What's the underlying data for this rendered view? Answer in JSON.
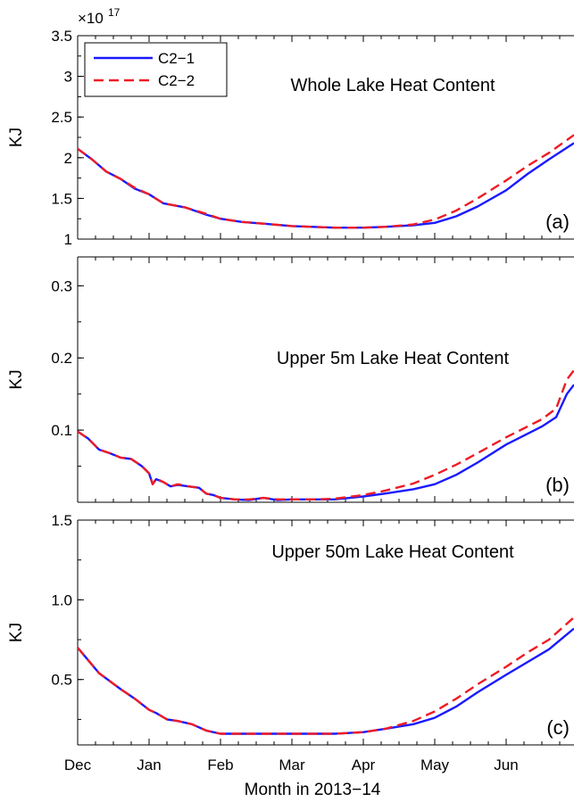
{
  "chart_data": {
    "type": "line",
    "xlabel": "Month in 2013−14",
    "months": [
      "Dec",
      "Jan",
      "Feb",
      "Mar",
      "Apr",
      "May",
      "Jun"
    ],
    "xlim": [
      0,
      6.95
    ],
    "legend": {
      "position": "top-left",
      "entries": [
        "C2−1",
        "C2−2"
      ]
    },
    "colors": {
      "C2-1": "#1a1aff",
      "C2-2": "#ee1c25"
    },
    "panels": [
      {
        "id": "a",
        "tag": "(a)",
        "title": "Whole Lake Heat Content",
        "ylabel": "KJ",
        "exponent_base": "×10",
        "exponent_power": "17",
        "ylim": [
          1,
          3.5
        ],
        "yticks": [
          1,
          1.5,
          2,
          2.5,
          3,
          3.5
        ],
        "ytick_labels": [
          "1",
          "1.5",
          "2",
          "2.5",
          "3",
          "3.5"
        ],
        "show_legend": true,
        "series": [
          {
            "name": "C2−1",
            "style": "solid",
            "x": [
              0,
              0.2,
              0.4,
              0.6,
              0.8,
              1.0,
              1.2,
              1.5,
              1.8,
              2.0,
              2.3,
              2.6,
              3.0,
              3.3,
              3.6,
              4.0,
              4.3,
              4.7,
              5.0,
              5.3,
              5.6,
              6.0,
              6.3,
              6.6,
              6.95
            ],
            "y": [
              2.11,
              1.98,
              1.83,
              1.74,
              1.62,
              1.55,
              1.44,
              1.39,
              1.3,
              1.25,
              1.21,
              1.19,
              1.16,
              1.15,
              1.14,
              1.14,
              1.15,
              1.17,
              1.2,
              1.28,
              1.4,
              1.6,
              1.8,
              1.98,
              2.18
            ]
          },
          {
            "name": "C2−2",
            "style": "dashed",
            "x": [
              0,
              0.2,
              0.4,
              0.6,
              0.8,
              1.0,
              1.2,
              1.5,
              1.8,
              2.0,
              2.3,
              2.6,
              3.0,
              3.3,
              3.6,
              4.0,
              4.3,
              4.7,
              5.0,
              5.3,
              5.6,
              6.0,
              6.3,
              6.6,
              6.95
            ],
            "y": [
              2.11,
              1.98,
              1.83,
              1.74,
              1.63,
              1.55,
              1.44,
              1.39,
              1.31,
              1.25,
              1.21,
              1.19,
              1.16,
              1.15,
              1.14,
              1.14,
              1.15,
              1.18,
              1.24,
              1.35,
              1.5,
              1.72,
              1.9,
              2.06,
              2.28
            ]
          }
        ]
      },
      {
        "id": "b",
        "tag": "(b)",
        "title": "Upper 5m Lake Heat Content",
        "ylabel": "KJ",
        "ylim": [
          0,
          0.34
        ],
        "yticks": [
          0.1,
          0.2,
          0.3
        ],
        "ytick_labels": [
          "0.1",
          "0.2",
          "0.3"
        ],
        "show_legend": false,
        "series": [
          {
            "name": "C2−1",
            "style": "solid",
            "x": [
              0,
              0.15,
              0.3,
              0.45,
              0.6,
              0.75,
              0.9,
              1.0,
              1.05,
              1.1,
              1.2,
              1.3,
              1.4,
              1.55,
              1.7,
              1.8,
              1.9,
              2.0,
              2.2,
              2.4,
              2.6,
              2.8,
              3.0,
              3.3,
              3.6,
              4.0,
              4.3,
              4.7,
              5.0,
              5.3,
              5.6,
              6.0,
              6.3,
              6.5,
              6.7,
              6.85,
              6.95
            ],
            "y": [
              0.098,
              0.088,
              0.073,
              0.068,
              0.062,
              0.06,
              0.05,
              0.04,
              0.025,
              0.032,
              0.028,
              0.022,
              0.024,
              0.022,
              0.02,
              0.012,
              0.01,
              0.006,
              0.004,
              0.003,
              0.006,
              0.003,
              0.004,
              0.004,
              0.004,
              0.008,
              0.012,
              0.018,
              0.025,
              0.038,
              0.055,
              0.08,
              0.095,
              0.105,
              0.118,
              0.15,
              0.163
            ]
          },
          {
            "name": "C2−2",
            "style": "dashed",
            "x": [
              0,
              0.15,
              0.3,
              0.45,
              0.6,
              0.75,
              0.9,
              1.0,
              1.05,
              1.1,
              1.2,
              1.3,
              1.4,
              1.55,
              1.7,
              1.8,
              1.9,
              2.0,
              2.2,
              2.4,
              2.6,
              2.8,
              3.0,
              3.3,
              3.6,
              4.0,
              4.3,
              4.7,
              5.0,
              5.3,
              5.6,
              6.0,
              6.3,
              6.5,
              6.7,
              6.85,
              6.95
            ],
            "y": [
              0.098,
              0.088,
              0.073,
              0.068,
              0.062,
              0.06,
              0.05,
              0.04,
              0.025,
              0.033,
              0.028,
              0.022,
              0.025,
              0.022,
              0.02,
              0.012,
              0.01,
              0.006,
              0.004,
              0.004,
              0.006,
              0.004,
              0.004,
              0.004,
              0.005,
              0.01,
              0.016,
              0.026,
              0.038,
              0.052,
              0.068,
              0.09,
              0.105,
              0.115,
              0.13,
              0.17,
              0.183
            ]
          }
        ]
      },
      {
        "id": "c",
        "tag": "(c)",
        "title": "Upper 50m Lake Heat Content",
        "ylabel": "KJ",
        "ylim": [
          0.09,
          1.5
        ],
        "yticks": [
          0.5,
          1.0,
          1.5
        ],
        "ytick_labels": [
          "0.5",
          "1.0",
          "1.5"
        ],
        "show_legend": false,
        "series": [
          {
            "name": "C2−1",
            "style": "solid",
            "x": [
              0,
              0.15,
              0.3,
              0.45,
              0.6,
              0.8,
              1.0,
              1.1,
              1.25,
              1.4,
              1.6,
              1.8,
              2.0,
              2.3,
              2.6,
              3.0,
              3.3,
              3.6,
              4.0,
              4.3,
              4.7,
              5.0,
              5.3,
              5.6,
              6.0,
              6.3,
              6.6,
              6.95
            ],
            "y": [
              0.7,
              0.62,
              0.54,
              0.49,
              0.44,
              0.38,
              0.31,
              0.29,
              0.25,
              0.24,
              0.22,
              0.18,
              0.16,
              0.16,
              0.16,
              0.16,
              0.16,
              0.16,
              0.17,
              0.19,
              0.22,
              0.26,
              0.33,
              0.42,
              0.53,
              0.61,
              0.69,
              0.82
            ]
          },
          {
            "name": "C2−2",
            "style": "dashed",
            "x": [
              0,
              0.15,
              0.3,
              0.45,
              0.6,
              0.8,
              1.0,
              1.1,
              1.25,
              1.4,
              1.6,
              1.8,
              2.0,
              2.3,
              2.6,
              3.0,
              3.3,
              3.6,
              4.0,
              4.3,
              4.7,
              5.0,
              5.3,
              5.6,
              6.0,
              6.3,
              6.6,
              6.95
            ],
            "y": [
              0.7,
              0.62,
              0.54,
              0.49,
              0.44,
              0.38,
              0.31,
              0.29,
              0.25,
              0.24,
              0.22,
              0.18,
              0.16,
              0.16,
              0.16,
              0.16,
              0.16,
              0.16,
              0.17,
              0.19,
              0.24,
              0.3,
              0.38,
              0.47,
              0.58,
              0.67,
              0.75,
              0.89
            ]
          }
        ]
      }
    ]
  }
}
